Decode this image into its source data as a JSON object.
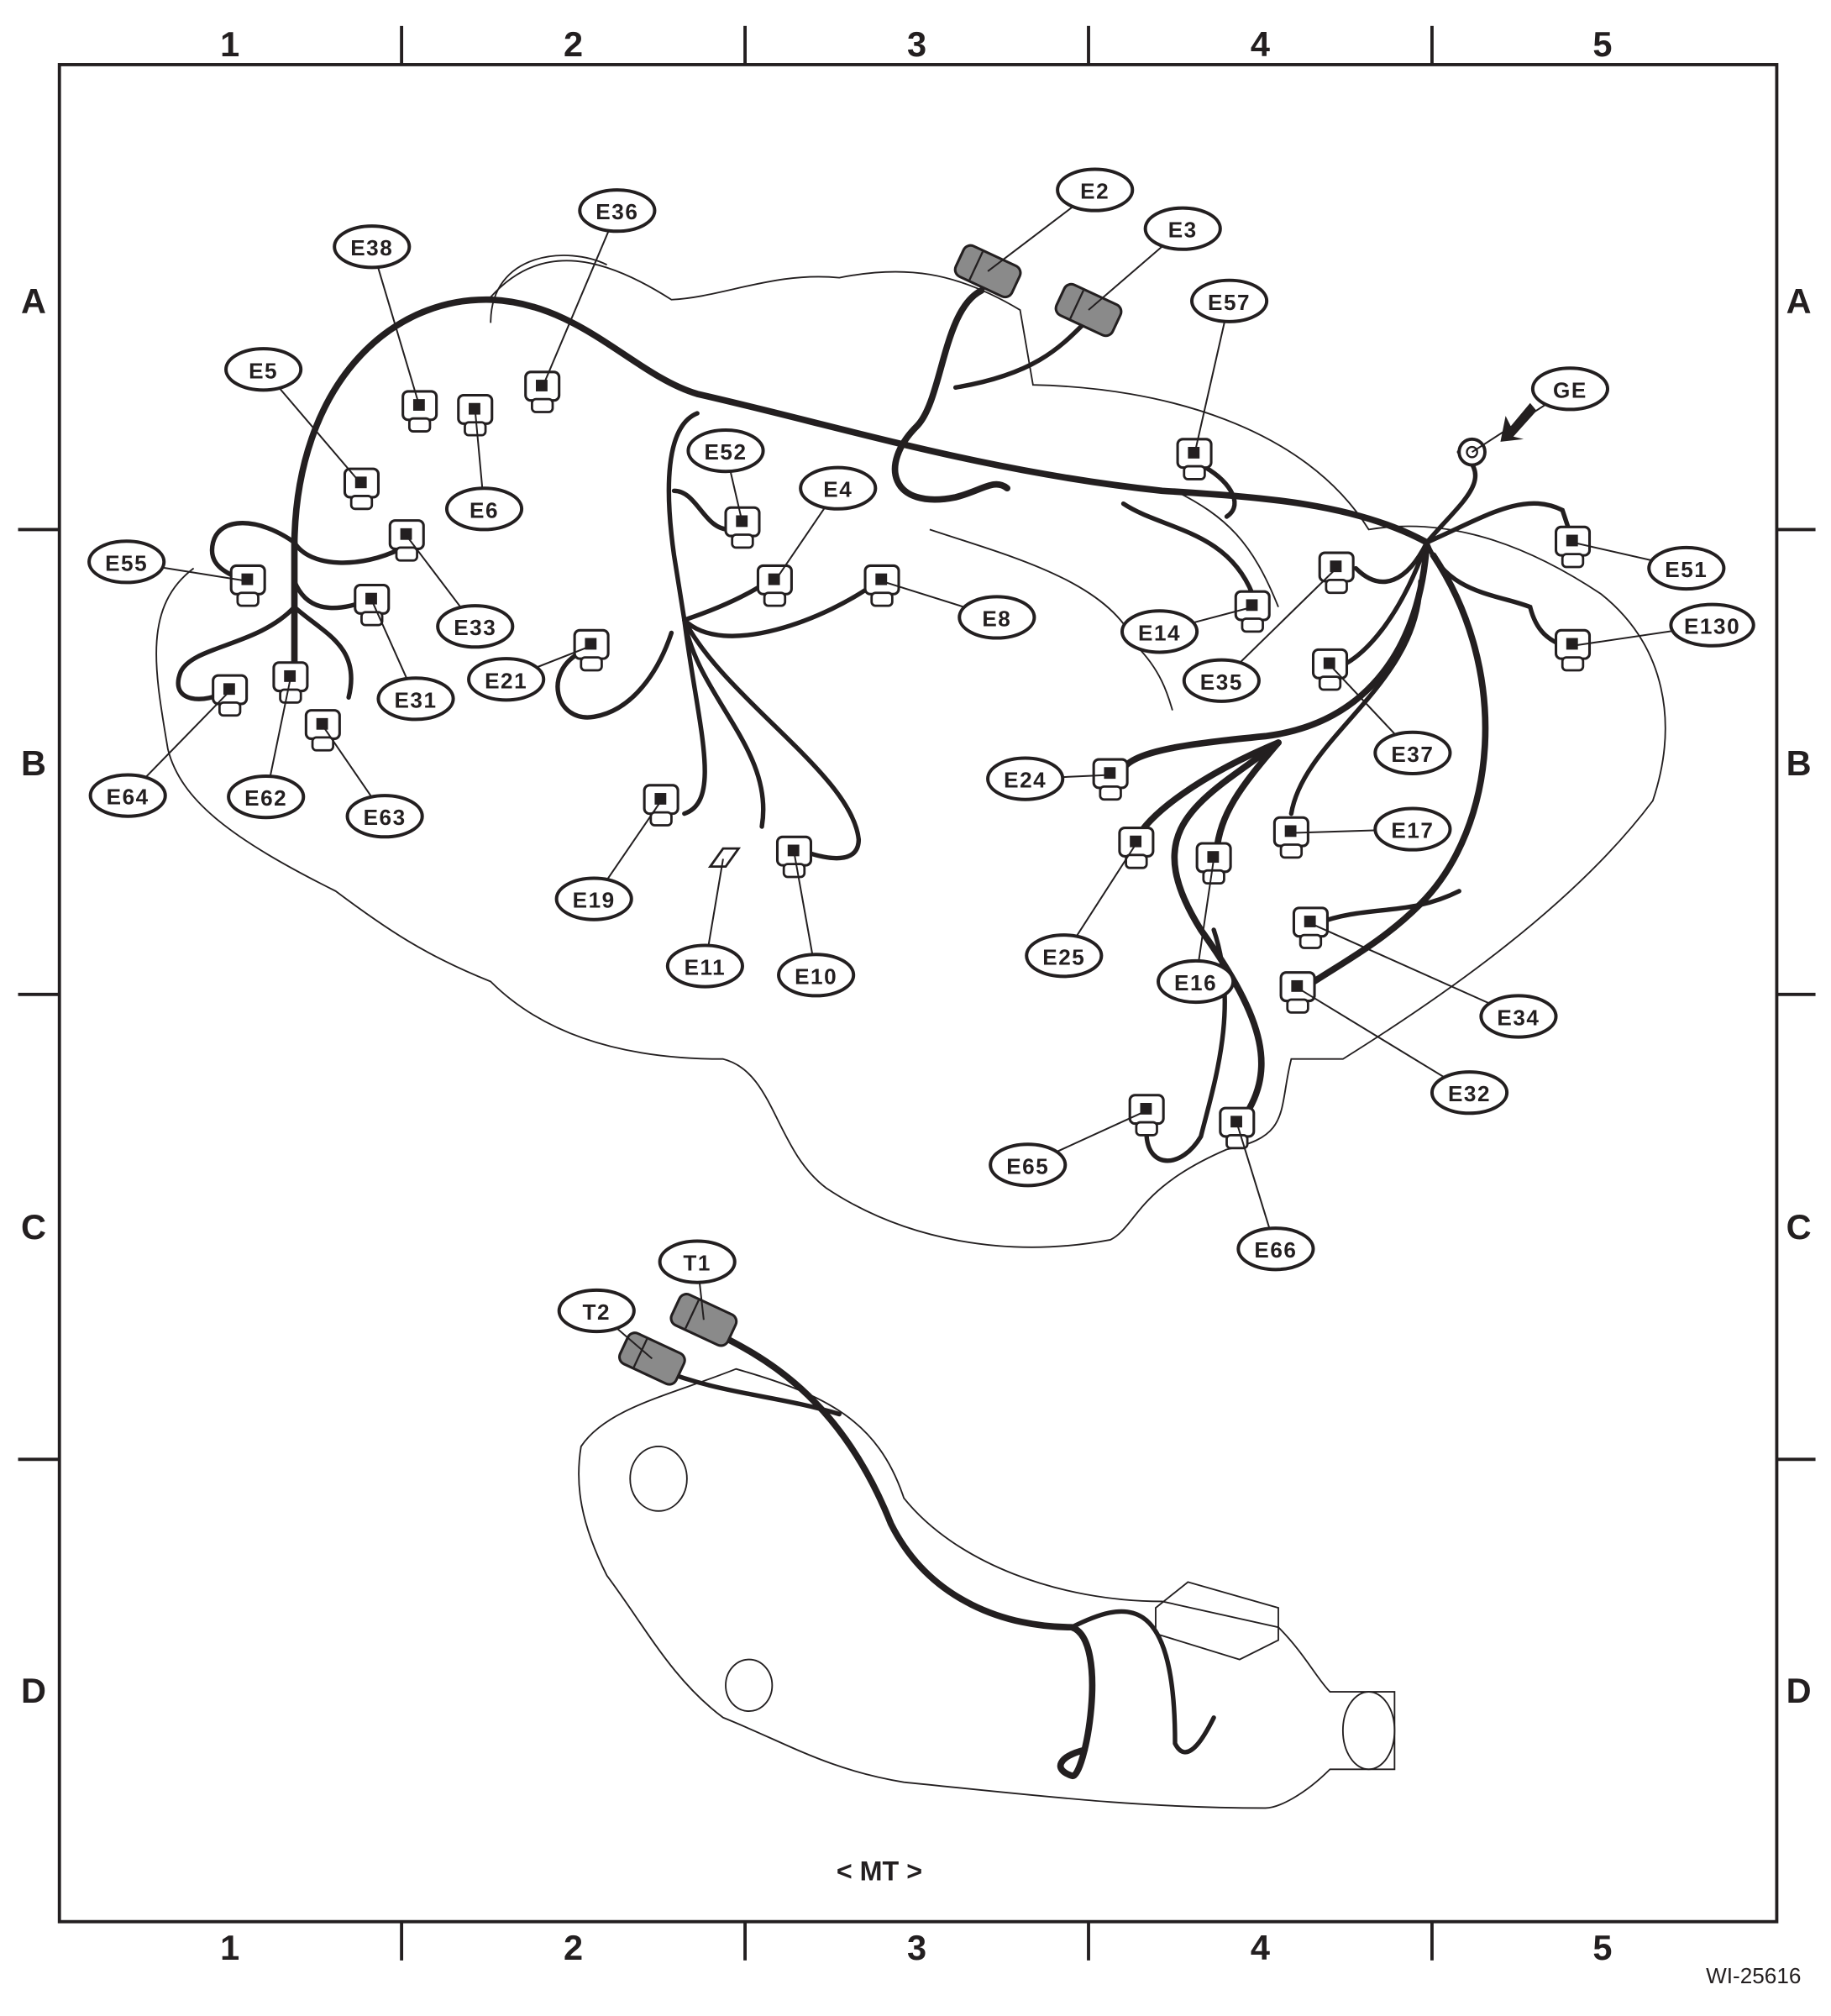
{
  "figure_id": "WI-25616",
  "variant_caption": "< MT >",
  "grid": {
    "columns": [
      "1",
      "2",
      "3",
      "4",
      "5"
    ],
    "rows": [
      "A",
      "B",
      "C",
      "D"
    ]
  },
  "colors": {
    "ink": "#231f20",
    "connector_gray": "#8a8a8a",
    "background": "#ffffff"
  },
  "connectors": [
    {
      "id": "E2",
      "type": "gray-block"
    },
    {
      "id": "E3",
      "type": "gray-block"
    },
    {
      "id": "E57"
    },
    {
      "id": "GE",
      "type": "ground-terminal"
    },
    {
      "id": "E38"
    },
    {
      "id": "E36"
    },
    {
      "id": "E5"
    },
    {
      "id": "E6"
    },
    {
      "id": "E52"
    },
    {
      "id": "E4"
    },
    {
      "id": "E55"
    },
    {
      "id": "E33"
    },
    {
      "id": "E31"
    },
    {
      "id": "E21"
    },
    {
      "id": "E8"
    },
    {
      "id": "E14"
    },
    {
      "id": "E35"
    },
    {
      "id": "E51"
    },
    {
      "id": "E130"
    },
    {
      "id": "E37"
    },
    {
      "id": "E24"
    },
    {
      "id": "E17"
    },
    {
      "id": "E64"
    },
    {
      "id": "E62"
    },
    {
      "id": "E63"
    },
    {
      "id": "E19"
    },
    {
      "id": "E11"
    },
    {
      "id": "E10"
    },
    {
      "id": "E25"
    },
    {
      "id": "E16"
    },
    {
      "id": "E34"
    },
    {
      "id": "E32"
    },
    {
      "id": "E65"
    },
    {
      "id": "E66"
    },
    {
      "id": "T1",
      "type": "gray-block"
    },
    {
      "id": "T2",
      "type": "gray-block"
    }
  ]
}
